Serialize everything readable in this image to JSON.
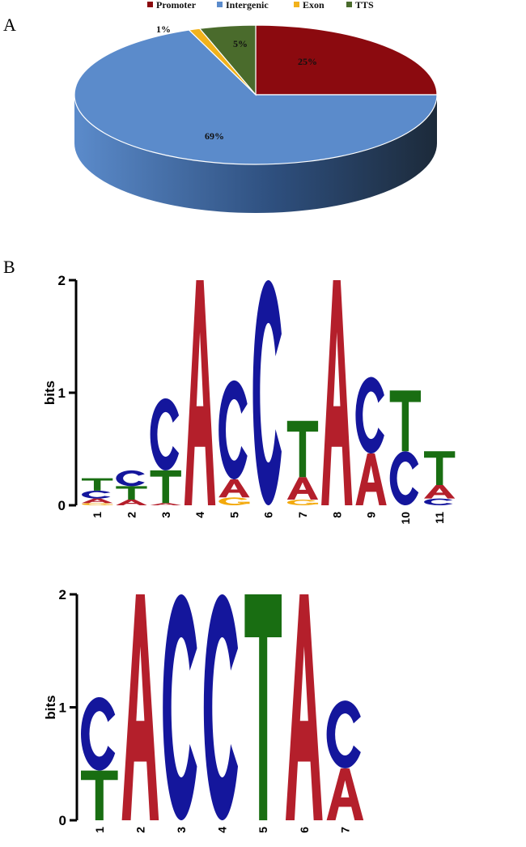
{
  "panels": {
    "a": "A",
    "b": "B"
  },
  "chart_data": [
    {
      "type": "pie",
      "categories": [
        "Promoter",
        "Intergenic",
        "Exon",
        "TTS"
      ],
      "values": [
        25,
        69,
        1,
        5
      ],
      "value_labels": [
        "25%",
        "69%",
        "1%",
        "5%"
      ],
      "colors": [
        "#8b0a0f",
        "#5b8bcb",
        "#f2b21c",
        "#4a6b2c"
      ],
      "side_colors": [
        "#3a0a0c",
        "#2e4f7e",
        "#a27a10",
        "#2b3f19"
      ],
      "legend_placement": "top",
      "style": "3d"
    },
    {
      "type": "sequence-logo",
      "ylabel": "bits",
      "ylim": [
        0,
        2
      ],
      "yticks": [
        "0",
        "1",
        "2"
      ],
      "positions": [
        "1",
        "2",
        "3",
        "4",
        "5",
        "6",
        "7",
        "8",
        "9",
        "10",
        "11"
      ],
      "columns": [
        [
          {
            "b": "G",
            "h": 0.02
          },
          {
            "b": "A",
            "h": 0.04
          },
          {
            "b": "C",
            "h": 0.07
          },
          {
            "b": "T",
            "h": 0.11
          }
        ],
        [
          {
            "b": "A",
            "h": 0.05
          },
          {
            "b": "T",
            "h": 0.12
          },
          {
            "b": "C",
            "h": 0.14
          }
        ],
        [
          {
            "b": "A",
            "h": 0.02
          },
          {
            "b": "T",
            "h": 0.29
          },
          {
            "b": "C",
            "h": 0.64
          }
        ],
        [
          {
            "b": "A",
            "h": 2.0
          }
        ],
        [
          {
            "b": "G",
            "h": 0.07
          },
          {
            "b": "A",
            "h": 0.16
          },
          {
            "b": "C",
            "h": 0.88
          }
        ],
        [
          {
            "b": "C",
            "h": 2.0
          }
        ],
        [
          {
            "b": "G",
            "h": 0.05
          },
          {
            "b": "A",
            "h": 0.2
          },
          {
            "b": "T",
            "h": 0.5
          }
        ],
        [
          {
            "b": "A",
            "h": 2.0
          }
        ],
        [
          {
            "b": "A",
            "h": 0.46
          },
          {
            "b": "C",
            "h": 0.68
          }
        ],
        [
          {
            "b": "C",
            "h": 0.48
          },
          {
            "b": "T",
            "h": 0.54
          }
        ],
        [
          {
            "b": "C",
            "h": 0.06
          },
          {
            "b": "A",
            "h": 0.12
          },
          {
            "b": "T",
            "h": 0.3
          }
        ]
      ]
    },
    {
      "type": "sequence-logo",
      "ylabel": "bits",
      "ylim": [
        0,
        2
      ],
      "yticks": [
        "0",
        "1",
        "2"
      ],
      "positions": [
        "1",
        "2",
        "3",
        "4",
        "5",
        "6",
        "7"
      ],
      "columns": [
        [
          {
            "b": "T",
            "h": 0.44
          },
          {
            "b": "C",
            "h": 0.65
          }
        ],
        [
          {
            "b": "A",
            "h": 2.0
          }
        ],
        [
          {
            "b": "C",
            "h": 2.0
          }
        ],
        [
          {
            "b": "C",
            "h": 2.0
          }
        ],
        [
          {
            "b": "T",
            "h": 2.0
          }
        ],
        [
          {
            "b": "A",
            "h": 2.0
          }
        ],
        [
          {
            "b": "A",
            "h": 0.46
          },
          {
            "b": "C",
            "h": 0.6
          }
        ]
      ]
    }
  ],
  "base_colors": {
    "A": "#b41f2b",
    "C": "#14169c",
    "G": "#f3a90c",
    "T": "#196e12"
  }
}
